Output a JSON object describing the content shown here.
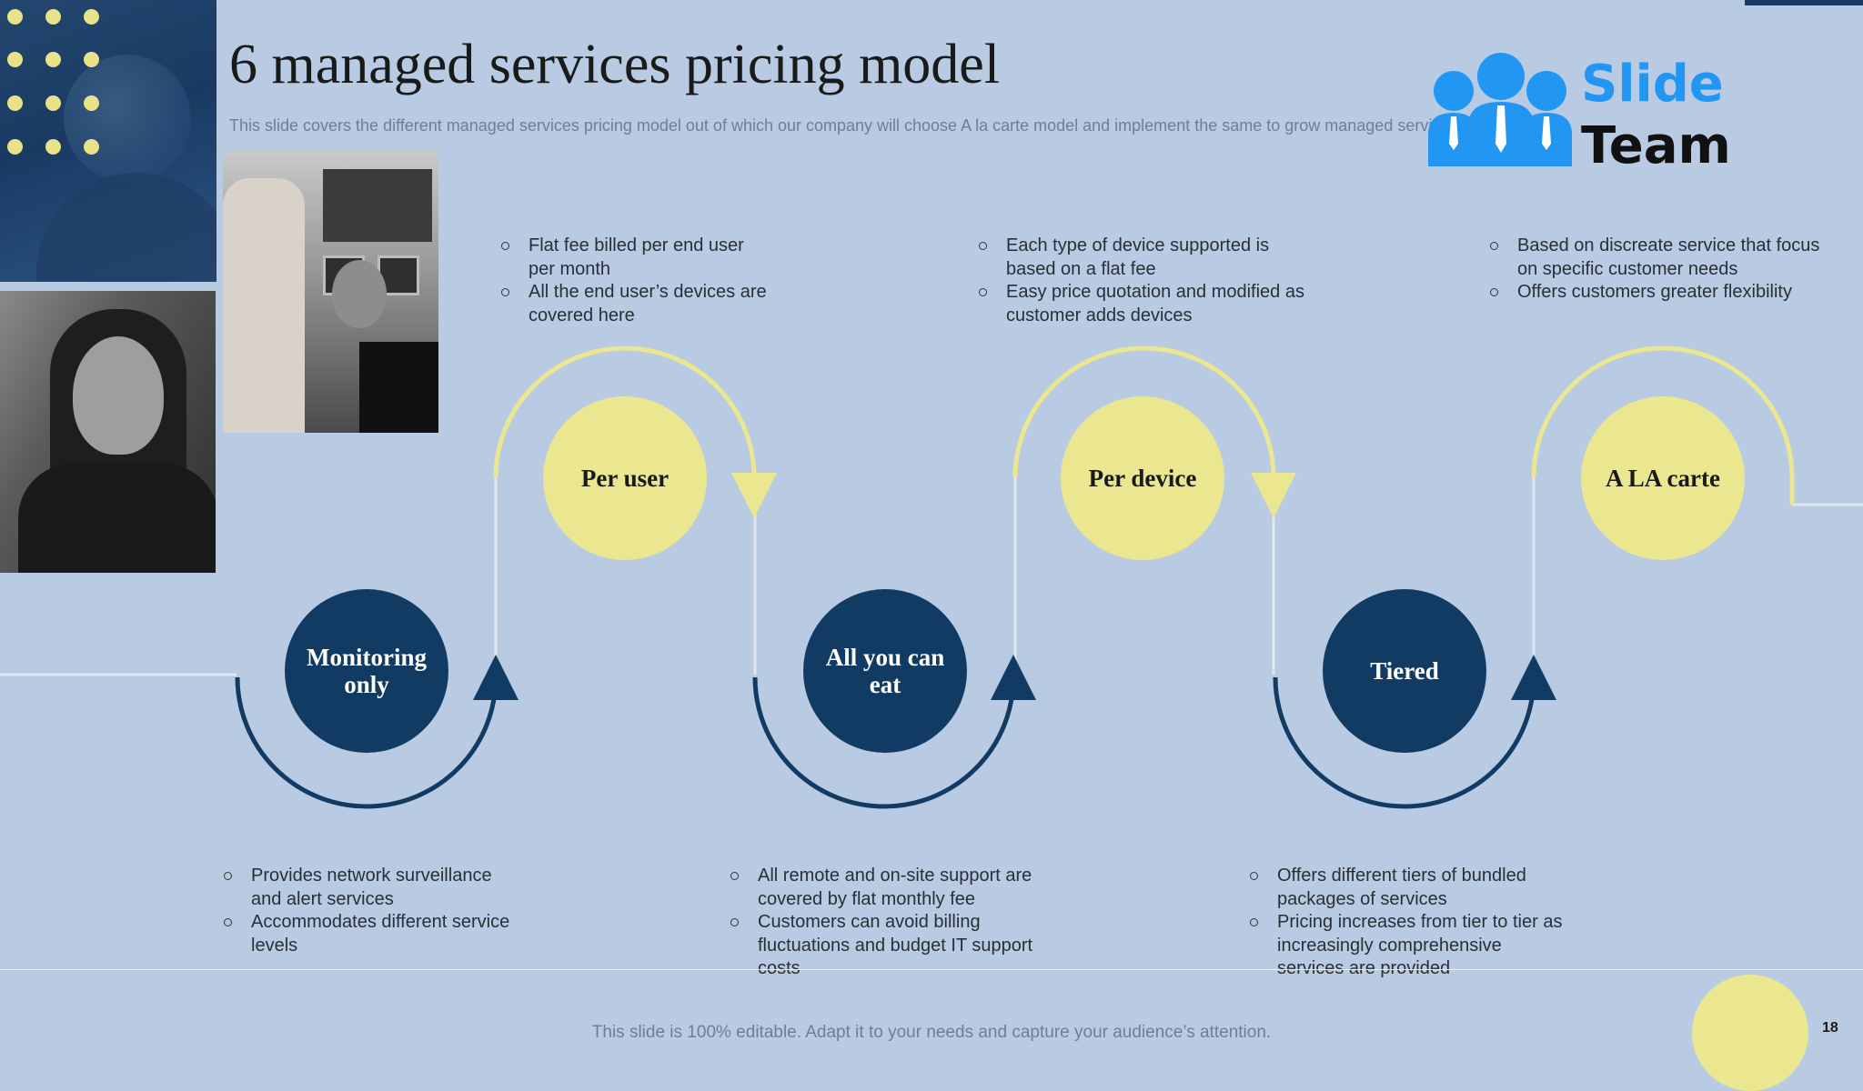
{
  "title": "6 managed services pricing model",
  "subtitle": "This slide covers the different managed services pricing model out of which our company will choose A la carte model and implement the same to grow managed services business",
  "logo": {
    "line1": "Slide",
    "line2": "Team"
  },
  "colors": {
    "background": "#b8cbe2",
    "dark_node": "#123b63",
    "light_node": "#ebe690",
    "accent_dot": "#e8e289"
  },
  "models": [
    {
      "label": "Monitoring only",
      "bullets": [
        "Provides network surveillance and alert services",
        "Accommodates different service levels"
      ]
    },
    {
      "label": "Per user",
      "bullets": [
        "Flat fee billed per end user per month",
        "All the end user’s devices are covered  here"
      ]
    },
    {
      "label": "All you can eat",
      "bullets": [
        "All remote and on-site support are covered  by flat monthly fee",
        "Customers can avoid billing fluctuations and budget IT support costs"
      ]
    },
    {
      "label": "Per device",
      "bullets": [
        "Each type of device supported is based on a flat fee",
        "Easy price quotation and modified as customer adds devices"
      ]
    },
    {
      "label": "Tiered",
      "bullets": [
        "Offers different tiers of bundled packages of services",
        "Pricing increases from tier to tier as increasingly comprehensive services are provided"
      ]
    },
    {
      "label": "A LA carte",
      "bullets": [
        "Based on discreate service that focus on specific customer needs",
        "Offers customers greater flexibility"
      ]
    }
  ],
  "footer": "This slide is 100% editable. Adapt it to your needs and capture your audience’s attention.",
  "page_number": "18"
}
